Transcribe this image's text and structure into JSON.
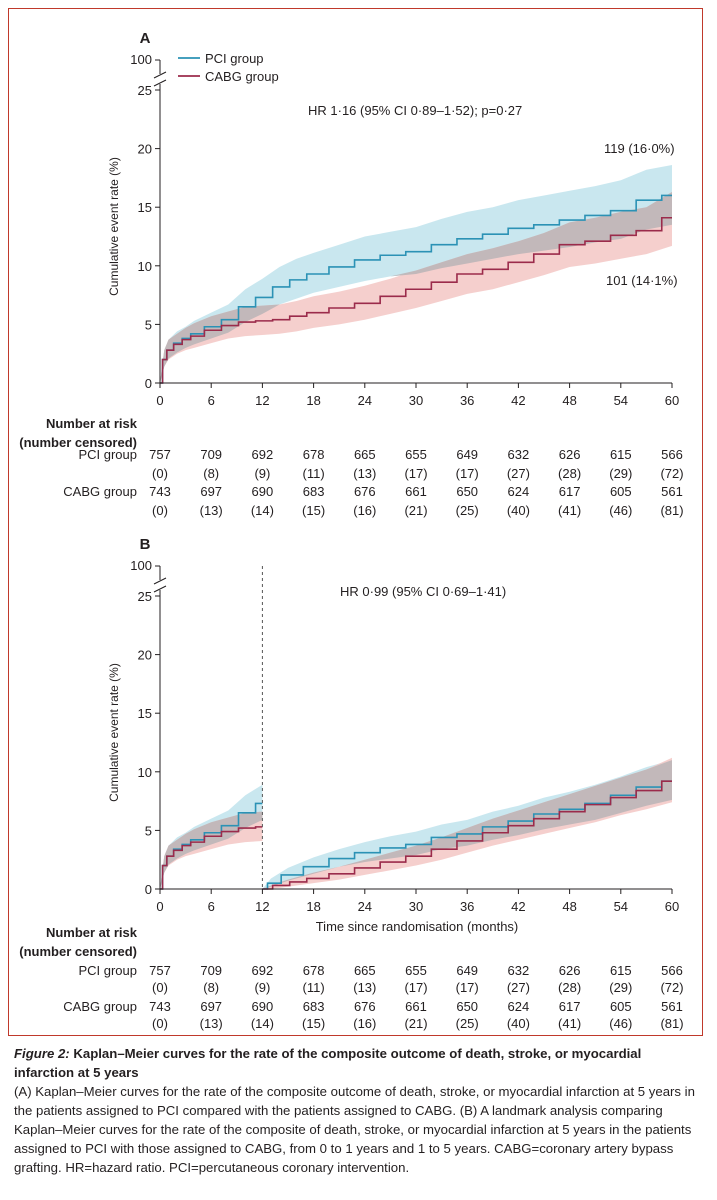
{
  "colors": {
    "pci": "#2b92b5",
    "cabg": "#9b2b4b",
    "pci_band": "#bfe3ec",
    "cabg_band": "#f3c7c4",
    "overlap_band": "#bcb6b8",
    "frame": "#c0392b",
    "text": "#231f20"
  },
  "legend": {
    "pci_label": "PCI group",
    "cabg_label": "CABG group"
  },
  "risk_table": {
    "title_line1": "Number at risk",
    "title_line2": "(number censored)",
    "pci_label": "PCI group",
    "cabg_label": "CABG group",
    "pci_at_risk": [
      "757",
      "709",
      "692",
      "678",
      "665",
      "655",
      "649",
      "632",
      "626",
      "615",
      "566"
    ],
    "pci_censored": [
      "(0)",
      "(8)",
      "(9)",
      "(11)",
      "(13)",
      "(17)",
      "(17)",
      "(27)",
      "(28)",
      "(29)",
      "(72)"
    ],
    "cabg_at_risk": [
      "743",
      "697",
      "690",
      "683",
      "676",
      "661",
      "650",
      "624",
      "617",
      "605",
      "561"
    ],
    "cabg_censored": [
      "(0)",
      "(13)",
      "(14)",
      "(15)",
      "(16)",
      "(21)",
      "(25)",
      "(40)",
      "(41)",
      "(46)",
      "(81)"
    ]
  },
  "chart_data": [
    {
      "panel_label": "A",
      "type": "line",
      "title": "",
      "xlabel": "",
      "ylabel": "Cumulative event rate (%)",
      "x_ticks": [
        0,
        6,
        12,
        18,
        24,
        30,
        36,
        42,
        48,
        54,
        60
      ],
      "y_ticks": [
        0,
        5,
        10,
        15,
        20,
        25
      ],
      "y_break_label": "100",
      "xlim": [
        0,
        60
      ],
      "ylim": [
        0,
        25
      ],
      "annotation": "HR 1·16 (95% CI 0·89–1·52); p=0·27",
      "end_labels": {
        "pci": "119 (16·0%)",
        "cabg": "101 (14·1%)"
      },
      "series": [
        {
          "name": "PCI group",
          "x": [
            0,
            0.5,
            1,
            2,
            3,
            4,
            6,
            8,
            10,
            12,
            14,
            16,
            18,
            21,
            24,
            27,
            30,
            33,
            36,
            39,
            42,
            45,
            48,
            51,
            54,
            57,
            60
          ],
          "y": [
            0,
            2.0,
            2.8,
            3.4,
            3.8,
            4.2,
            4.8,
            5.4,
            6.5,
            7.3,
            8.2,
            8.8,
            9.3,
            9.9,
            10.5,
            10.9,
            11.2,
            11.8,
            12.3,
            12.7,
            13.2,
            13.5,
            13.9,
            14.3,
            14.7,
            15.6,
            16.0
          ],
          "ci_lower": [
            0,
            1.4,
            2.1,
            2.6,
            3.0,
            3.3,
            3.8,
            4.3,
            5.2,
            5.9,
            6.7,
            7.2,
            7.7,
            8.2,
            8.7,
            9.1,
            9.3,
            9.8,
            10.2,
            10.6,
            11.0,
            11.3,
            11.6,
            12.0,
            12.3,
            13.1,
            13.5
          ],
          "ci_upper": [
            0,
            2.8,
            3.7,
            4.4,
            4.8,
            5.3,
            6.0,
            6.7,
            8.0,
            8.9,
            9.9,
            10.6,
            11.1,
            11.8,
            12.5,
            12.9,
            13.3,
            14.0,
            14.6,
            15.0,
            15.6,
            16.0,
            16.4,
            16.8,
            17.3,
            18.2,
            18.6
          ]
        },
        {
          "name": "CABG group",
          "x": [
            0,
            0.5,
            1,
            2,
            3,
            4,
            6,
            8,
            10,
            12,
            14,
            16,
            18,
            21,
            24,
            27,
            30,
            33,
            36,
            39,
            42,
            45,
            48,
            51,
            54,
            57,
            60
          ],
          "y": [
            0,
            2.0,
            2.8,
            3.3,
            3.7,
            4.0,
            4.5,
            4.9,
            5.2,
            5.3,
            5.4,
            5.7,
            6.0,
            6.4,
            6.8,
            7.4,
            8.0,
            8.6,
            9.3,
            9.7,
            10.3,
            11.0,
            11.8,
            12.1,
            12.6,
            13.0,
            14.1
          ],
          "ci_lower": [
            0,
            1.4,
            2.0,
            2.5,
            2.8,
            3.0,
            3.4,
            3.8,
            4.0,
            4.1,
            4.2,
            4.4,
            4.7,
            5.0,
            5.4,
            5.9,
            6.4,
            7.0,
            7.6,
            8.0,
            8.6,
            9.2,
            9.9,
            10.2,
            10.6,
            11.0,
            11.7
          ],
          "ci_upper": [
            0,
            2.8,
            3.7,
            4.2,
            4.7,
            5.1,
            5.7,
            6.1,
            6.5,
            6.6,
            6.7,
            7.0,
            7.4,
            7.8,
            8.3,
            8.9,
            9.6,
            10.3,
            11.0,
            11.5,
            12.1,
            12.8,
            13.7,
            14.1,
            14.6,
            15.0,
            16.3
          ]
        }
      ]
    },
    {
      "panel_label": "B",
      "type": "line",
      "title": "",
      "xlabel": "Time since randomisation (months)",
      "ylabel": "Cumulative event rate (%)",
      "x_ticks": [
        0,
        6,
        12,
        18,
        24,
        30,
        36,
        42,
        48,
        54,
        60
      ],
      "y_ticks": [
        0,
        5,
        10,
        15,
        20,
        25
      ],
      "y_break_label": "100",
      "xlim": [
        0,
        60
      ],
      "ylim": [
        0,
        25
      ],
      "landmark_month": 12,
      "annotation": "HR 0·99 (95% CI 0·69–1·41)",
      "series": [
        {
          "name": "PCI group",
          "segments": [
            {
              "x": [
                0,
                0.5,
                1,
                2,
                3,
                4,
                6,
                8,
                10,
                12
              ],
              "y": [
                0,
                2.0,
                2.8,
                3.4,
                3.8,
                4.2,
                4.8,
                5.4,
                6.5,
                7.3
              ],
              "ci_lower": [
                0,
                1.4,
                2.1,
                2.6,
                3.0,
                3.3,
                3.8,
                4.3,
                5.2,
                5.9
              ],
              "ci_upper": [
                0,
                2.8,
                3.7,
                4.4,
                4.8,
                5.3,
                6.0,
                6.7,
                8.0,
                8.9
              ]
            },
            {
              "x": [
                12,
                13,
                15,
                18,
                21,
                24,
                27,
                30,
                33,
                36,
                39,
                42,
                45,
                48,
                51,
                54,
                57,
                60
              ],
              "y": [
                0,
                0.5,
                1.2,
                1.9,
                2.6,
                3.1,
                3.5,
                3.8,
                4.4,
                4.7,
                5.3,
                5.8,
                6.4,
                6.8,
                7.3,
                8.0,
                8.7,
                9.2
              ],
              "ci_lower": [
                0,
                0.2,
                0.7,
                1.3,
                1.9,
                2.3,
                2.6,
                2.9,
                3.4,
                3.7,
                4.2,
                4.6,
                5.1,
                5.5,
                5.9,
                6.5,
                7.1,
                7.6
              ],
              "ci_upper": [
                0,
                0.9,
                1.8,
                2.7,
                3.4,
                4.0,
                4.5,
                4.9,
                5.5,
                5.9,
                6.6,
                7.1,
                7.8,
                8.3,
                8.9,
                9.6,
                10.4,
                11.0
              ]
            }
          ]
        },
        {
          "name": "CABG group",
          "segments": [
            {
              "x": [
                0,
                0.5,
                1,
                2,
                3,
                4,
                6,
                8,
                10,
                12
              ],
              "y": [
                0,
                2.0,
                2.8,
                3.3,
                3.7,
                4.0,
                4.5,
                4.9,
                5.2,
                5.3
              ],
              "ci_lower": [
                0,
                1.4,
                2.0,
                2.5,
                2.8,
                3.0,
                3.4,
                3.8,
                4.0,
                4.1
              ],
              "ci_upper": [
                0,
                2.8,
                3.7,
                4.2,
                4.7,
                5.1,
                5.7,
                6.1,
                6.5,
                6.6
              ]
            },
            {
              "x": [
                12,
                14,
                16,
                18,
                21,
                24,
                27,
                30,
                33,
                36,
                39,
                42,
                45,
                48,
                51,
                54,
                57,
                60
              ],
              "y": [
                0,
                0.3,
                0.6,
                0.9,
                1.3,
                1.8,
                2.3,
                2.8,
                3.4,
                4.1,
                4.8,
                5.4,
                6.0,
                6.6,
                7.2,
                7.8,
                8.4,
                9.2
              ],
              "ci_lower": [
                0,
                0.1,
                0.3,
                0.5,
                0.8,
                1.2,
                1.6,
                2.0,
                2.5,
                3.1,
                3.7,
                4.2,
                4.7,
                5.2,
                5.7,
                6.3,
                6.8,
                7.4
              ],
              "ci_upper": [
                0,
                0.6,
                1.0,
                1.4,
                1.9,
                2.5,
                3.1,
                3.7,
                4.4,
                5.2,
                6.0,
                6.7,
                7.4,
                8.1,
                8.8,
                9.5,
                10.2,
                11.2
              ]
            }
          ]
        }
      ]
    }
  ],
  "caption": {
    "figure_label": "Figure 2:",
    "title": "Kaplan–Meier curves for the rate of the composite outcome of death, stroke, or myocardial infarction at 5 years",
    "body": "(A) Kaplan–Meier curves for the rate of the composite outcome of death, stroke, or myocardial infarction at 5 years in the patients assigned to PCI compared with the patients assigned to CABG. (B) A landmark analysis comparing Kaplan–Meier curves for the rate of the composite of death, stroke, or myocardial infarction at 5 years in the patients assigned to PCI with those assigned to CABG, from 0 to 1 years and 1 to 5 years. CABG=coronary artery bypass grafting. HR=hazard ratio. PCI=percutaneous coronary intervention."
  }
}
